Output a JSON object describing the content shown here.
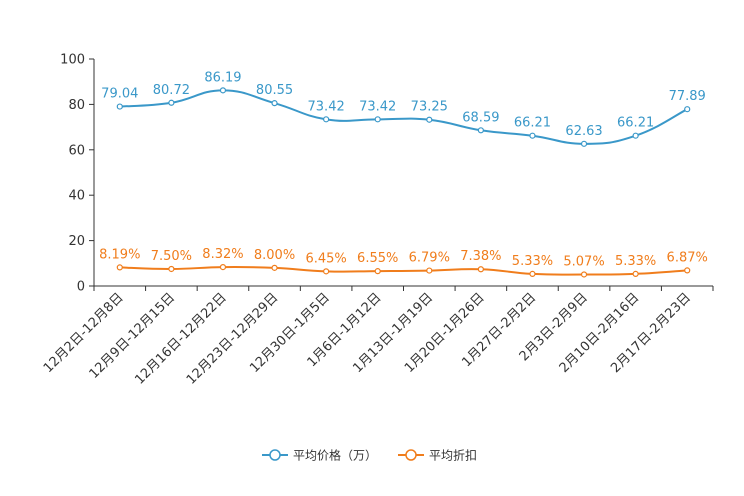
{
  "chart_data": {
    "type": "line",
    "categories": [
      "12月2日-12月8日",
      "12月9日-12月15日",
      "12月16日-12月22日",
      "12月23日-12月29日",
      "12月30日-1月5日",
      "1月6日-1月12日",
      "1月13日-1月19日",
      "1月20日-1月26日",
      "1月27日-2月2日",
      "2月3日-2月9日",
      "2月10日-2月16日",
      "2月17日-2月23日"
    ],
    "ylim": [
      0,
      100
    ],
    "yticks": [
      0,
      20,
      40,
      60,
      80,
      100
    ],
    "ytick_labels": [
      "0",
      "20",
      "40",
      "60",
      "80",
      "100"
    ],
    "series": [
      {
        "name": "平均价格（万）",
        "color": "#3a98c9",
        "values": [
          79.04,
          80.72,
          86.19,
          80.55,
          73.42,
          73.42,
          73.25,
          68.59,
          66.21,
          62.63,
          66.21,
          77.89
        ],
        "labels": [
          "79.04",
          "80.72",
          "86.19",
          "80.55",
          "73.42",
          "73.42",
          "73.25",
          "68.59",
          "66.21",
          "62.63",
          "66.21",
          "77.89"
        ]
      },
      {
        "name": "平均折扣",
        "color": "#f07d1c",
        "values": [
          8.19,
          7.5,
          8.32,
          8.0,
          6.45,
          6.55,
          6.79,
          7.38,
          5.33,
          5.07,
          5.33,
          6.87
        ],
        "labels": [
          "8.19%",
          "7.50%",
          "8.32%",
          "8.00%",
          "6.45%",
          "6.55%",
          "6.79%",
          "7.38%",
          "5.33%",
          "5.07%",
          "5.33%",
          "6.87%"
        ]
      }
    ],
    "legend_position": "bottom-center",
    "grid": false
  }
}
